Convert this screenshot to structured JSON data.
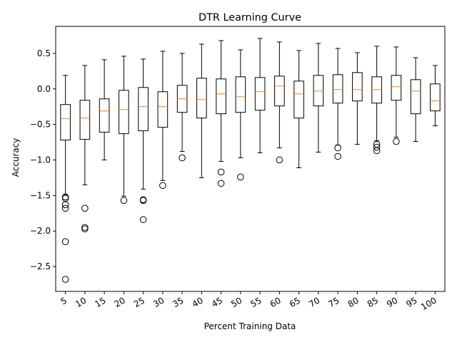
{
  "chart_data": {
    "type": "box",
    "title": "DTR Learning Curve",
    "xlabel": "Percent Training Data",
    "ylabel": "Accuracy",
    "ylim": [
      -2.85,
      0.88
    ],
    "yticks": [
      -2.5,
      -2.0,
      -1.5,
      -1.0,
      -0.5,
      0.0,
      0.5
    ],
    "ytick_labels": [
      "−2.5",
      "−2.0",
      "−1.5",
      "−1.0",
      "−0.5",
      "0.0",
      "0.5"
    ],
    "categories": [
      "5",
      "10",
      "15",
      "20",
      "25",
      "30",
      "35",
      "40",
      "45",
      "50",
      "55",
      "60",
      "65",
      "70",
      "75",
      "80",
      "85",
      "90",
      "95",
      "100"
    ],
    "boxes": [
      {
        "whislo": -1.49,
        "q1": -0.72,
        "med": -0.42,
        "q3": -0.22,
        "whishi": 0.19,
        "fliers": [
          -1.52,
          -1.54,
          -1.63,
          -1.68,
          -2.15,
          -2.68
        ]
      },
      {
        "whislo": -1.35,
        "q1": -0.71,
        "med": -0.41,
        "q3": -0.16,
        "whishi": 0.33,
        "fliers": [
          -1.68,
          -1.95,
          -1.97
        ]
      },
      {
        "whislo": -1.0,
        "q1": -0.61,
        "med": -0.31,
        "q3": -0.14,
        "whishi": 0.41,
        "fliers": []
      },
      {
        "whislo": -1.51,
        "q1": -0.63,
        "med": -0.29,
        "q3": -0.02,
        "whishi": 0.46,
        "fliers": [
          -1.57
        ]
      },
      {
        "whislo": -1.41,
        "q1": -0.59,
        "med": -0.25,
        "q3": 0.02,
        "whishi": 0.42,
        "fliers": [
          -1.56,
          -1.57,
          -1.84
        ]
      },
      {
        "whislo": -1.29,
        "q1": -0.54,
        "med": -0.25,
        "q3": -0.04,
        "whishi": 0.53,
        "fliers": [
          -1.36
        ]
      },
      {
        "whislo": -0.88,
        "q1": -0.33,
        "med": -0.14,
        "q3": 0.05,
        "whishi": 0.5,
        "fliers": [
          -0.97
        ]
      },
      {
        "whislo": -1.25,
        "q1": -0.41,
        "med": -0.15,
        "q3": 0.15,
        "whishi": 0.63,
        "fliers": []
      },
      {
        "whislo": -1.02,
        "q1": -0.35,
        "med": -0.07,
        "q3": 0.14,
        "whishi": 0.68,
        "fliers": [
          -1.17,
          -1.33
        ]
      },
      {
        "whislo": -0.97,
        "q1": -0.33,
        "med": -0.11,
        "q3": 0.17,
        "whishi": 0.55,
        "fliers": [
          -1.24
        ]
      },
      {
        "whislo": -0.9,
        "q1": -0.3,
        "med": -0.04,
        "q3": 0.16,
        "whishi": 0.71,
        "fliers": []
      },
      {
        "whislo": -0.83,
        "q1": -0.24,
        "med": 0.04,
        "q3": 0.18,
        "whishi": 0.66,
        "fliers": [
          -1.0
        ]
      },
      {
        "whislo": -1.11,
        "q1": -0.41,
        "med": -0.07,
        "q3": 0.11,
        "whishi": 0.54,
        "fliers": []
      },
      {
        "whislo": -0.89,
        "q1": -0.24,
        "med": -0.03,
        "q3": 0.19,
        "whishi": 0.64,
        "fliers": []
      },
      {
        "whislo": -0.79,
        "q1": -0.2,
        "med": -0.01,
        "q3": 0.2,
        "whishi": 0.57,
        "fliers": [
          -0.83,
          -0.95
        ]
      },
      {
        "whislo": -0.78,
        "q1": -0.17,
        "med": -0.01,
        "q3": 0.23,
        "whishi": 0.51,
        "fliers": []
      },
      {
        "whislo": -0.73,
        "q1": -0.2,
        "med": -0.01,
        "q3": 0.17,
        "whishi": 0.6,
        "fliers": [
          -0.78,
          -0.82,
          -0.87
        ]
      },
      {
        "whislo": -0.68,
        "q1": -0.16,
        "med": 0.03,
        "q3": 0.19,
        "whishi": 0.59,
        "fliers": [
          -0.74
        ]
      },
      {
        "whislo": -0.74,
        "q1": -0.35,
        "med": -0.03,
        "q3": 0.13,
        "whishi": 0.44,
        "fliers": []
      },
      {
        "whislo": -0.52,
        "q1": -0.31,
        "med": -0.17,
        "q3": 0.07,
        "whishi": 0.33,
        "fliers": []
      }
    ],
    "grid": false,
    "legend": "none"
  }
}
